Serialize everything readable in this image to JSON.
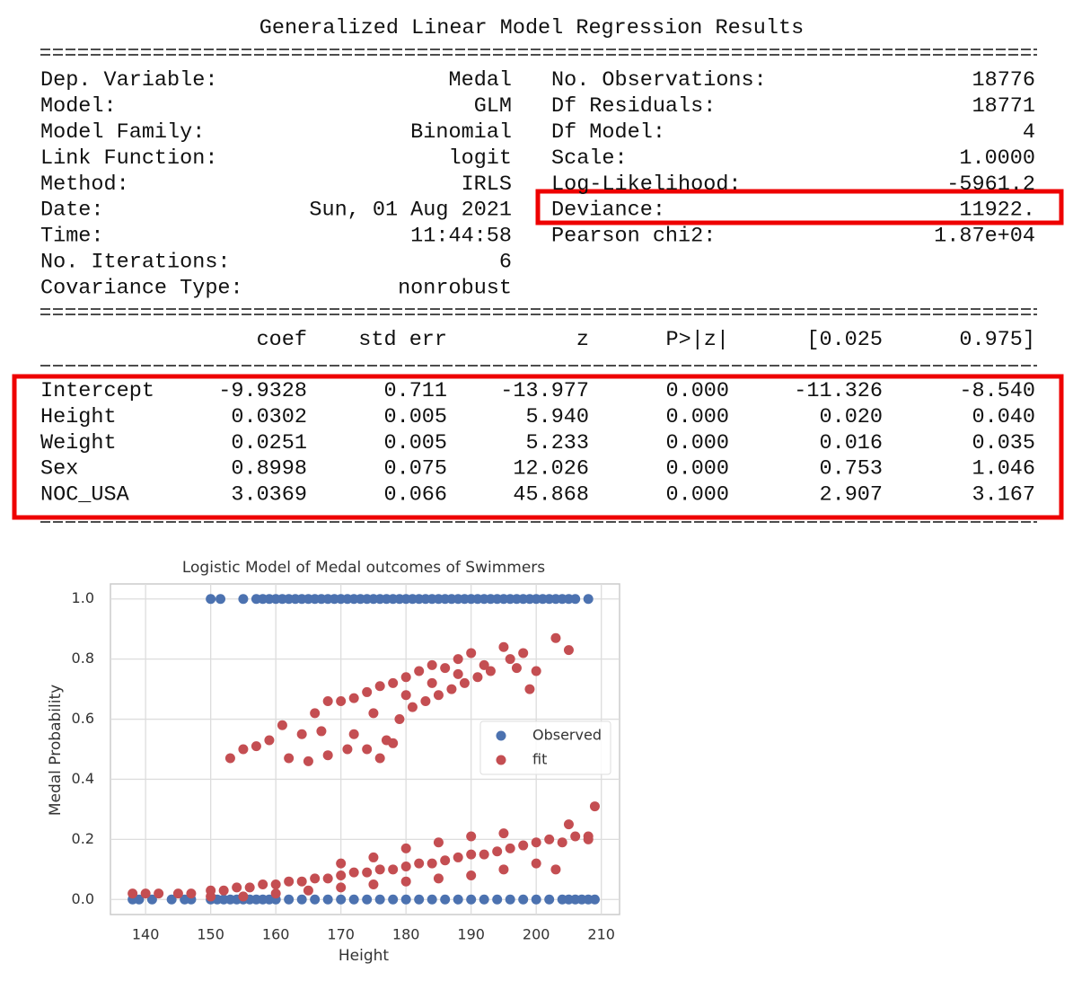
{
  "summary": {
    "title": "Generalized Linear Model Regression Results",
    "left": [
      [
        "Dep. Variable:",
        "Medal"
      ],
      [
        "Model:",
        "GLM"
      ],
      [
        "Model Family:",
        "Binomial"
      ],
      [
        "Link Function:",
        "logit"
      ],
      [
        "Method:",
        "IRLS"
      ],
      [
        "Date:",
        "Sun, 01 Aug 2021"
      ],
      [
        "Time:",
        "11:44:58"
      ],
      [
        "No. Iterations:",
        "6"
      ],
      [
        "Covariance Type:",
        "nonrobust"
      ]
    ],
    "right": [
      [
        "No. Observations:",
        "18776"
      ],
      [
        "Df Residuals:",
        "18771"
      ],
      [
        "Df Model:",
        "4"
      ],
      [
        "Scale:",
        "1.0000"
      ],
      [
        "Log-Likelihood:",
        "-5961.2"
      ],
      [
        "Deviance:",
        "11922."
      ],
      [
        "Pearson chi2:",
        "1.87e+04"
      ]
    ],
    "header": [
      "coef",
      "std err",
      "z",
      "P>|z|",
      "[0.025",
      "0.975]"
    ],
    "rows": [
      [
        "Intercept",
        "-9.9328",
        "0.711",
        "-13.977",
        "0.000",
        "-11.326",
        "-8.540"
      ],
      [
        "Height",
        "0.0302",
        "0.005",
        "5.940",
        "0.000",
        "0.020",
        "0.040"
      ],
      [
        "Weight",
        "0.0251",
        "0.005",
        "5.233",
        "0.000",
        "0.016",
        "0.035"
      ],
      [
        "Sex",
        "0.8998",
        "0.075",
        "12.026",
        "0.000",
        "0.753",
        "1.046"
      ],
      [
        "NOC_USA",
        "3.0369",
        "0.066",
        "45.868",
        "0.000",
        "2.907",
        "3.167"
      ]
    ]
  },
  "chart_data": {
    "type": "scatter",
    "title": "Logistic Model of Medal outcomes of Swimmers",
    "x_label": "Height",
    "y_label": "Medal Probability",
    "xlim": [
      134.6,
      212.8
    ],
    "ylim": [
      -0.05,
      1.05
    ],
    "xticks": [
      140,
      150,
      160,
      170,
      180,
      190,
      200,
      210
    ],
    "yticks": [
      {
        "value": 0,
        "label": "0.0"
      },
      0.2,
      0.4,
      0.6,
      0.8,
      {
        "value": 1,
        "label": "1.0"
      }
    ],
    "grid": true,
    "legend": "center right",
    "series": [
      {
        "name": "Observed",
        "color": "#4c72b0",
        "x": [
          150,
          151.5,
          155,
          157,
          158,
          159,
          160,
          161,
          162,
          163,
          164,
          165,
          166,
          167,
          168,
          169,
          170,
          171,
          172,
          173,
          174,
          175,
          176,
          177,
          178,
          179,
          180,
          181,
          182,
          183,
          184,
          185,
          186,
          187,
          188,
          189,
          190,
          191,
          192,
          193,
          194,
          195,
          196,
          197,
          198,
          199,
          200,
          201,
          202,
          203,
          204,
          205,
          206,
          208,
          138,
          139,
          141,
          144,
          146,
          147,
          150,
          151,
          152,
          153,
          154,
          155,
          156,
          157,
          158,
          159,
          160,
          162,
          164,
          166,
          168,
          170,
          172,
          174,
          176,
          178,
          180,
          182,
          184,
          186,
          188,
          190,
          192,
          194,
          196,
          198,
          200,
          202,
          204,
          205,
          206,
          207,
          208,
          209
        ],
        "values": [
          1,
          1,
          1,
          1,
          1,
          1,
          1,
          1,
          1,
          1,
          1,
          1,
          1,
          1,
          1,
          1,
          1,
          1,
          1,
          1,
          1,
          1,
          1,
          1,
          1,
          1,
          1,
          1,
          1,
          1,
          1,
          1,
          1,
          1,
          1,
          1,
          1,
          1,
          1,
          1,
          1,
          1,
          1,
          1,
          1,
          1,
          1,
          1,
          1,
          1,
          1,
          1,
          1,
          1,
          0,
          0,
          0,
          0,
          0,
          0,
          0,
          0,
          0,
          0,
          0,
          0,
          0,
          0,
          0,
          0,
          0,
          0,
          0,
          0,
          0,
          0,
          0,
          0,
          0,
          0,
          0,
          0,
          0,
          0,
          0,
          0,
          0,
          0,
          0,
          0,
          0,
          0,
          0,
          0,
          0,
          0,
          0,
          0
        ]
      },
      {
        "name": "fit",
        "color": "#c44e52",
        "x": [
          138,
          140,
          142,
          145,
          147,
          150,
          152,
          154,
          156,
          158,
          160,
          162,
          164,
          166,
          168,
          170,
          172,
          174,
          176,
          178,
          180,
          182,
          184,
          186,
          188,
          190,
          192,
          194,
          196,
          198,
          200,
          202,
          204,
          206,
          208,
          209,
          150,
          155,
          160,
          165,
          170,
          175,
          180,
          185,
          190,
          195,
          200,
          203,
          205,
          208,
          170,
          175,
          180,
          185,
          190,
          195,
          153,
          155,
          157,
          159,
          161,
          162,
          164,
          166,
          167,
          168,
          170,
          171,
          172,
          174,
          175,
          176,
          177,
          178,
          179,
          180,
          181,
          182,
          183,
          184,
          185,
          186,
          187,
          188,
          189,
          190,
          191,
          192,
          193,
          195,
          196,
          197,
          198,
          200,
          203,
          205,
          165,
          168,
          172,
          174,
          176,
          178,
          180,
          184,
          188,
          199
        ],
        "values": [
          0.02,
          0.02,
          0.02,
          0.02,
          0.02,
          0.03,
          0.03,
          0.04,
          0.04,
          0.05,
          0.05,
          0.06,
          0.06,
          0.07,
          0.07,
          0.08,
          0.09,
          0.09,
          0.1,
          0.1,
          0.11,
          0.12,
          0.12,
          0.13,
          0.14,
          0.15,
          0.15,
          0.16,
          0.17,
          0.18,
          0.19,
          0.2,
          0.19,
          0.21,
          0.2,
          0.31,
          0.01,
          0.01,
          0.02,
          0.03,
          0.04,
          0.05,
          0.06,
          0.07,
          0.08,
          0.1,
          0.12,
          0.1,
          0.25,
          0.21,
          0.12,
          0.14,
          0.17,
          0.19,
          0.21,
          0.22,
          0.47,
          0.5,
          0.51,
          0.53,
          0.58,
          0.47,
          0.55,
          0.62,
          0.56,
          0.66,
          0.66,
          0.5,
          0.67,
          0.69,
          0.62,
          0.71,
          0.53,
          0.72,
          0.6,
          0.74,
          0.64,
          0.76,
          0.66,
          0.78,
          0.68,
          0.77,
          0.7,
          0.8,
          0.72,
          0.82,
          0.74,
          0.78,
          0.76,
          0.84,
          0.8,
          0.77,
          0.82,
          0.76,
          0.87,
          0.83,
          0.46,
          0.48,
          0.55,
          0.5,
          0.47,
          0.52,
          0.68,
          0.72,
          0.75,
          0.7
        ]
      }
    ]
  }
}
